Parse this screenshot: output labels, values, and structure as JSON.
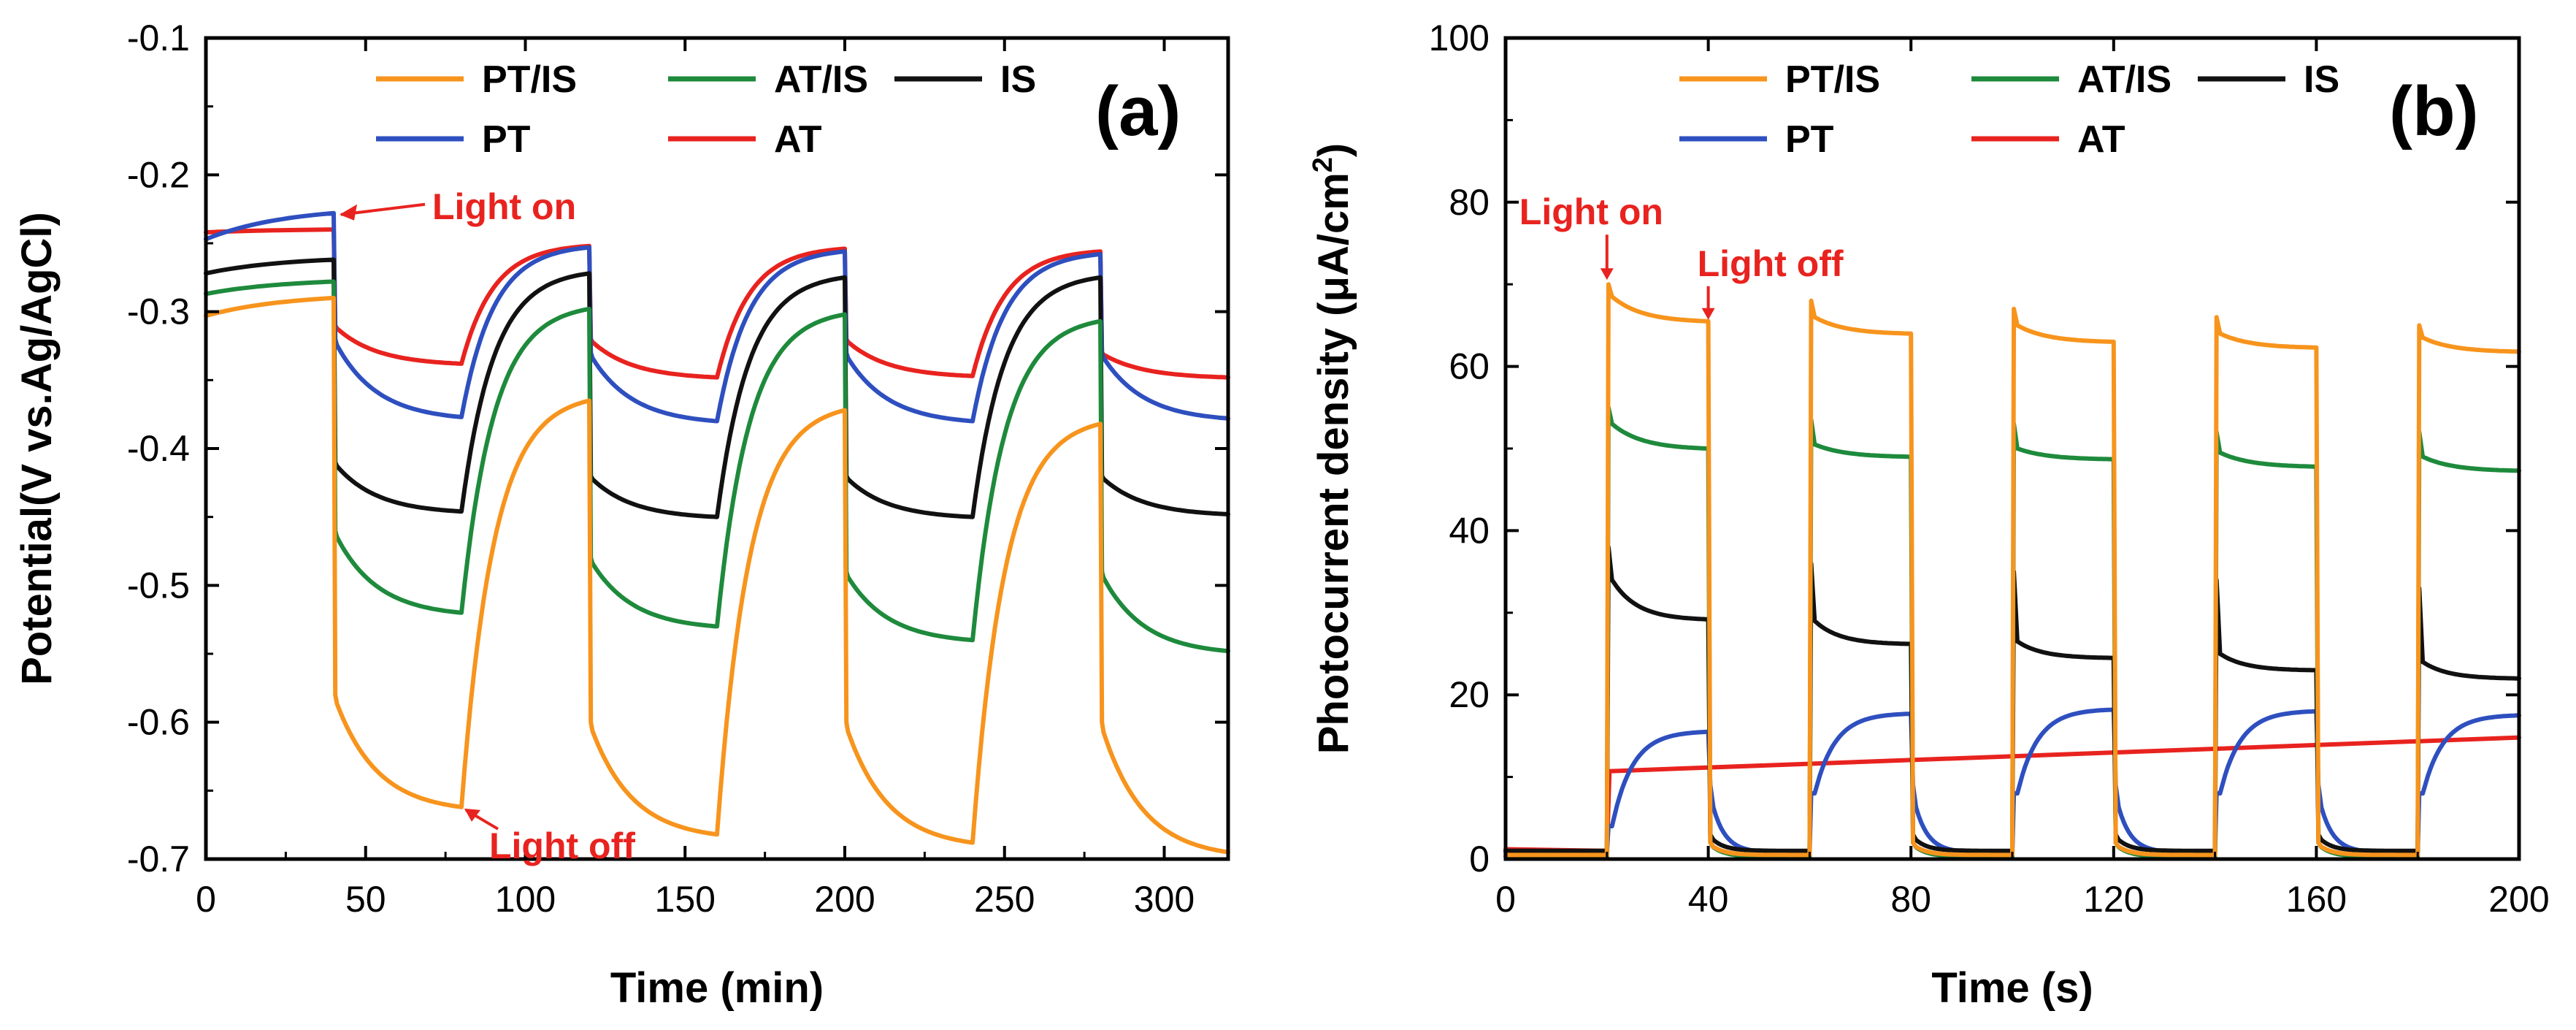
{
  "colors": {
    "PT/IS": "#F7941D",
    "AT/IS": "#1E8A3C",
    "IS": "#111111",
    "PT": "#2E4FBF",
    "AT": "#E8231F",
    "annotation": "#E8231F"
  },
  "chart_data": [
    {
      "type": "line",
      "panel": "(a)",
      "xlabel": "Time (min)",
      "ylabel": "Potential(V vs.Ag/AgCl)",
      "xlim": [
        0,
        320
      ],
      "ylim": [
        -0.7,
        -0.1
      ],
      "xticks": [
        0,
        50,
        100,
        150,
        200,
        250,
        300
      ],
      "xtick_labels": [
        "0",
        "50",
        "100",
        "150",
        "200",
        "250",
        "300"
      ],
      "yticks": [
        -0.1,
        -0.2,
        -0.3,
        -0.4,
        -0.5,
        -0.6,
        -0.7
      ],
      "ytick_labels": [
        "-0.1",
        "-0.2",
        "-0.3",
        "-0.4",
        "-0.5",
        "-0.6",
        "-0.7"
      ],
      "legend": [
        "PT/IS",
        "AT/IS",
        "IS",
        "PT",
        "AT"
      ],
      "legend_position": "top",
      "light_on_times": [
        40,
        120,
        200,
        280
      ],
      "light_off_times": [
        80,
        160,
        240
      ],
      "series": [
        {
          "name": "PT/IS",
          "start": -0.303,
          "pre_end": -0.29,
          "on": [
            [
              -0.58,
              -0.662
            ],
            [
              -0.6,
              -0.682
            ],
            [
              -0.6,
              -0.688
            ],
            [
              -0.6,
              -0.695
            ]
          ],
          "off": [
            -0.365,
            -0.372,
            -0.382
          ]
        },
        {
          "name": "AT/IS",
          "start": -0.287,
          "pre_end": -0.278,
          "on": [
            [
              -0.46,
              -0.52
            ],
            [
              -0.48,
              -0.53
            ],
            [
              -0.49,
              -0.54
            ],
            [
              -0.49,
              -0.548
            ]
          ],
          "off": [
            -0.298,
            -0.302,
            -0.307
          ]
        },
        {
          "name": "IS",
          "start": -0.272,
          "pre_end": -0.262,
          "on": [
            [
              -0.41,
              -0.446
            ],
            [
              -0.42,
              -0.45
            ],
            [
              -0.42,
              -0.45
            ],
            [
              -0.42,
              -0.448
            ]
          ],
          "off": [
            -0.272,
            -0.275,
            -0.275
          ]
        },
        {
          "name": "PT",
          "start": -0.247,
          "pre_end": -0.228,
          "on": [
            [
              -0.32,
              -0.377
            ],
            [
              -0.33,
              -0.38
            ],
            [
              -0.33,
              -0.38
            ],
            [
              -0.33,
              -0.378
            ]
          ],
          "off": [
            -0.253,
            -0.256,
            -0.258
          ]
        },
        {
          "name": "AT",
          "start": -0.242,
          "pre_end": -0.24,
          "on": [
            [
              -0.31,
              -0.338
            ],
            [
              -0.32,
              -0.348
            ],
            [
              -0.32,
              -0.347
            ],
            [
              -0.33,
              -0.348
            ]
          ],
          "off": [
            -0.252,
            -0.254,
            -0.256
          ]
        }
      ],
      "annotations": [
        {
          "text": "Light on",
          "x": 40,
          "y": -0.228
        },
        {
          "text": "Light off",
          "x": 80,
          "y": -0.662
        }
      ]
    },
    {
      "type": "line",
      "panel": "(b)",
      "xlabel": "Time (s)",
      "ylabel": "Photocurrent density (μA/cm",
      "ylabel_sup": "2",
      "ylabel_tail": ")",
      "xlim": [
        0,
        200
      ],
      "ylim": [
        0,
        100
      ],
      "xticks": [
        0,
        40,
        80,
        120,
        160,
        200
      ],
      "xtick_labels": [
        "0",
        "40",
        "80",
        "120",
        "160",
        "200"
      ],
      "yticks": [
        0,
        20,
        40,
        60,
        80,
        100
      ],
      "ytick_labels": [
        "0",
        "20",
        "40",
        "60",
        "80",
        "100"
      ],
      "legend": [
        "PT/IS",
        "AT/IS",
        "IS",
        "PT",
        "AT"
      ],
      "legend_position": "top",
      "on_intervals": [
        [
          20,
          40
        ],
        [
          60,
          80
        ],
        [
          100,
          120
        ],
        [
          140,
          160
        ],
        [
          180,
          200
        ]
      ],
      "series": [
        {
          "name": "PT/IS",
          "dark": 0.5,
          "peaks": [
            70,
            68,
            67,
            66,
            65
          ],
          "starts": [
            68.5,
            66,
            65,
            64,
            63.5
          ],
          "ends": [
            65.5,
            64,
            63,
            62.3,
            61.8
          ]
        },
        {
          "name": "AT/IS",
          "dark": 0.3,
          "peaks": [
            55,
            53.5,
            53,
            52,
            52
          ],
          "starts": [
            53,
            50.5,
            50,
            49.5,
            49
          ],
          "ends": [
            50,
            49,
            48.7,
            47.8,
            47.3
          ]
        },
        {
          "name": "IS",
          "dark": 1.0,
          "peaks": [
            38,
            36,
            35,
            34,
            33
          ],
          "starts": [
            34,
            29,
            26.5,
            25,
            24
          ],
          "ends": [
            29.2,
            26.2,
            24.5,
            23,
            22
          ]
        },
        {
          "name": "PT",
          "dark": 0.8,
          "peaks": [
            4,
            8,
            8,
            8,
            8
          ],
          "starts": [
            4,
            8,
            8,
            8,
            8
          ],
          "ends": [
            15.5,
            17.7,
            18.2,
            18,
            17.5
          ]
        },
        {
          "name": "AT",
          "dark": 1.0,
          "linear": [
            [
              0,
              1.2
            ],
            [
              20,
              1.0
            ],
            [
              20.5,
              10.7
            ],
            [
              200,
              14.8
            ]
          ]
        }
      ],
      "annotations": [
        {
          "text": "Light on",
          "x": 20,
          "y": 70
        },
        {
          "text": "Light off",
          "x": 40,
          "y": 65.5
        }
      ]
    }
  ]
}
